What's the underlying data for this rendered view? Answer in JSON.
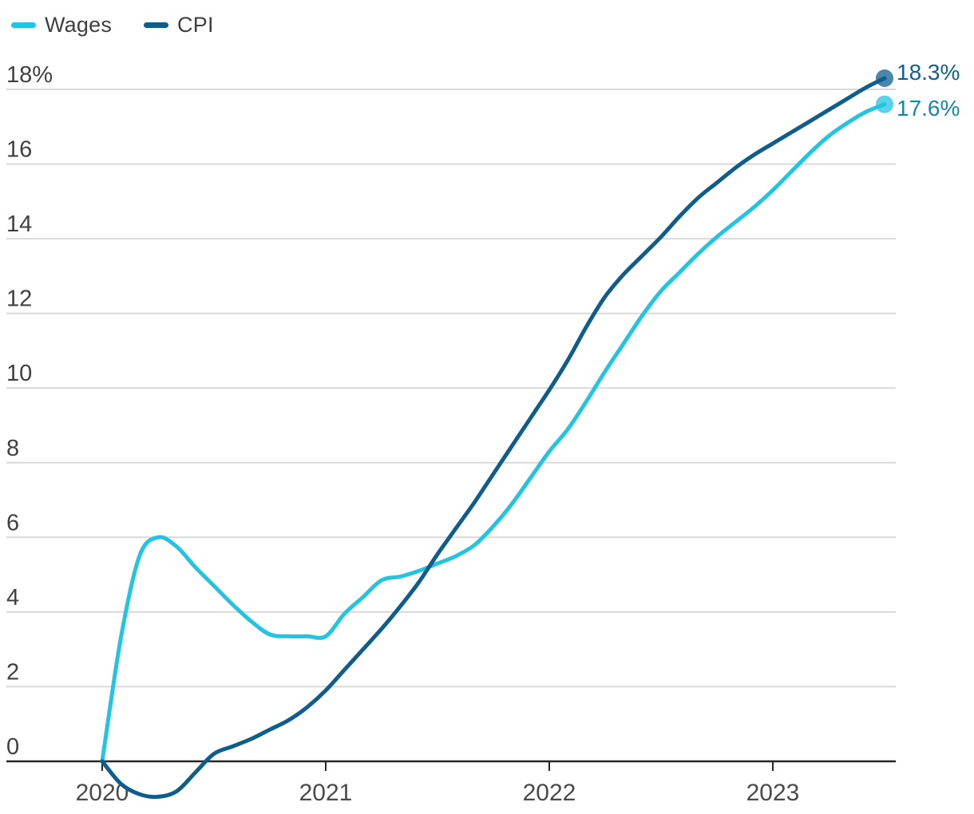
{
  "chart_data": {
    "type": "line",
    "title": "",
    "x_axis": {
      "tick_labels": [
        "2020",
        "2021",
        "2022",
        "2023"
      ],
      "start_year": 2020,
      "points_per_year": 12,
      "range_years": [
        2020.0,
        2023.5
      ]
    },
    "y_axis": {
      "tick_values": [
        0,
        2,
        4,
        6,
        8,
        10,
        12,
        14,
        16,
        18
      ],
      "tick_labels": [
        "0",
        "2",
        "4",
        "6",
        "8",
        "10",
        "12",
        "14",
        "16",
        "18%"
      ],
      "ylim": [
        -1,
        18.3
      ],
      "unit": "%",
      "gridlines": true
    },
    "legend_position": "top-left",
    "series": [
      {
        "name": "Wages",
        "color": "#23C3E2",
        "end_label": "17.6%",
        "end_label_color": "#1787A8",
        "end_value": 17.6,
        "values": [
          0,
          3.3,
          5.5,
          6.0,
          5.75,
          5.2,
          4.7,
          4.2,
          3.75,
          3.4,
          3.35,
          3.35,
          3.35,
          3.95,
          4.4,
          4.85,
          4.95,
          5.1,
          5.3,
          5.5,
          5.8,
          6.3,
          6.9,
          7.6,
          8.3,
          8.9,
          9.65,
          10.45,
          11.2,
          11.95,
          12.6,
          13.1,
          13.6,
          14.05,
          14.45,
          14.85,
          15.3,
          15.8,
          16.3,
          16.75,
          17.1,
          17.4,
          17.6
        ]
      },
      {
        "name": "CPI",
        "color": "#0E5D8C",
        "end_label": "18.3%",
        "end_label_color": "#11608F",
        "end_value": 18.3,
        "values": [
          0,
          -0.6,
          -0.88,
          -0.95,
          -0.8,
          -0.3,
          0.2,
          0.4,
          0.6,
          0.85,
          1.1,
          1.45,
          1.9,
          2.45,
          3.0,
          3.55,
          4.15,
          4.8,
          5.55,
          6.25,
          6.95,
          7.7,
          8.45,
          9.2,
          9.95,
          10.75,
          11.65,
          12.45,
          13.05,
          13.55,
          14.05,
          14.6,
          15.1,
          15.5,
          15.9,
          16.25,
          16.55,
          16.85,
          17.15,
          17.45,
          17.75,
          18.05,
          18.3
        ]
      }
    ],
    "colors": {
      "gridline": "#D9D9D9",
      "axis": "#262626",
      "y_tick_text": "#404040",
      "x_tick_text": "#4A4A4A",
      "legend_text": "#3F3F3F"
    }
  }
}
